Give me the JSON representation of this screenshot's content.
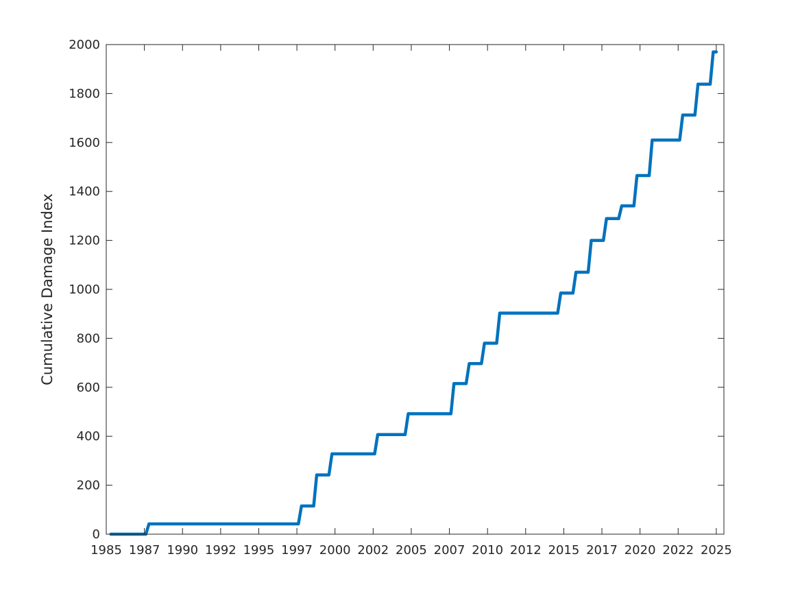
{
  "chart_data": {
    "type": "line",
    "title": "",
    "xlabel": "",
    "ylabel": "Cumulative Damage Index",
    "xlim": [
      1985.0,
      2025.5
    ],
    "ylim": [
      0,
      2000
    ],
    "grid": false,
    "x_ticks": [
      1985.0,
      1987.5,
      1990.0,
      1992.5,
      1995.0,
      1997.5,
      2000.0,
      2002.5,
      2005.0,
      2007.5,
      2010.0,
      2012.5,
      2015.0,
      2017.5,
      2020.0,
      2022.5,
      2025.0
    ],
    "x_tick_labels": [
      "1985",
      "1987",
      "1990",
      "1992",
      "1995",
      "1997",
      "2000",
      "2002",
      "2005",
      "2007",
      "2010",
      "2012",
      "2015",
      "2017",
      "2020",
      "2022",
      "2025"
    ],
    "y_ticks": [
      0,
      200,
      400,
      600,
      800,
      1000,
      1200,
      1400,
      1600,
      1800,
      2000
    ],
    "y_tick_labels": [
      "0",
      "200",
      "400",
      "600",
      "800",
      "1000",
      "1200",
      "1400",
      "1600",
      "1800",
      "2000"
    ],
    "series": [
      {
        "color": "#0072BD",
        "x": [
          1985.3,
          1987.6,
          1987.8,
          1997.6,
          1997.8,
          1998.6,
          1998.8,
          1999.6,
          1999.8,
          2002.6,
          2002.8,
          2004.6,
          2004.8,
          2007.6,
          2007.8,
          2008.6,
          2008.8,
          2009.6,
          2009.8,
          2010.6,
          2010.8,
          2014.6,
          2014.8,
          2015.6,
          2015.8,
          2016.6,
          2016.8,
          2017.6,
          2017.8,
          2018.6,
          2018.8,
          2019.6,
          2019.8,
          2020.6,
          2020.8,
          2022.6,
          2022.8,
          2023.6,
          2023.8,
          2024.6,
          2024.8,
          2025.0
        ],
        "y": [
          0,
          0,
          42,
          42,
          115,
          115,
          242,
          242,
          328,
          328,
          407,
          407,
          492,
          492,
          615,
          615,
          697,
          697,
          780,
          780,
          903,
          903,
          985,
          985,
          1070,
          1070,
          1200,
          1200,
          1289,
          1289,
          1341,
          1341,
          1465,
          1465,
          1610,
          1610,
          1712,
          1712,
          1838,
          1838,
          1970,
          1970
        ]
      }
    ]
  }
}
